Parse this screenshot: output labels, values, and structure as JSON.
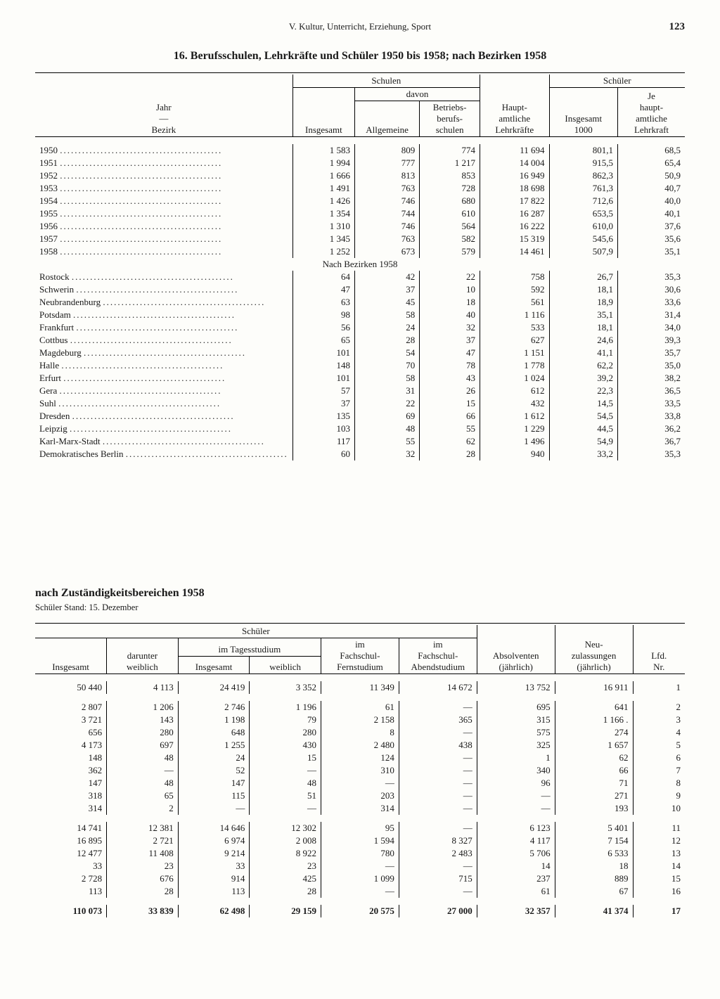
{
  "running_head": {
    "section": "V. Kultur, Unterricht, Erziehung, Sport",
    "page": "123"
  },
  "table1": {
    "title": "16. Berufsschulen, Lehrkräfte und Schüler 1950 bis 1958; nach Bezirken 1958",
    "header": {
      "stub1": "Jahr",
      "stub_dash": "—",
      "stub2": "Bezirk",
      "schulen": "Schulen",
      "davon": "davon",
      "insgesamt": "Insgesamt",
      "allgemeine": "Allgemeine",
      "betriebs": "Betriebs-\nberufs-\nschulen",
      "lehr": "Haupt-\namtliche\nLehrkräfte",
      "schueler": "Schüler",
      "sch_ins": "Insgesamt\n1000",
      "sch_je": "Je\nhaupt-\namtliche\nLehrkraft"
    },
    "years": [
      {
        "l": "1950",
        "c": [
          "1 583",
          "809",
          "774",
          "11 694",
          "801,1",
          "68,5"
        ]
      },
      {
        "l": "1951",
        "c": [
          "1 994",
          "777",
          "1 217",
          "14 004",
          "915,5",
          "65,4"
        ]
      },
      {
        "l": "1952",
        "c": [
          "1 666",
          "813",
          "853",
          "16 949",
          "862,3",
          "50,9"
        ]
      },
      {
        "l": "1953",
        "c": [
          "1 491",
          "763",
          "728",
          "18 698",
          "761,3",
          "40,7"
        ]
      },
      {
        "l": "1954",
        "c": [
          "1 426",
          "746",
          "680",
          "17 822",
          "712,6",
          "40,0"
        ]
      },
      {
        "l": "1955",
        "c": [
          "1 354",
          "744",
          "610",
          "16 287",
          "653,5",
          "40,1"
        ]
      },
      {
        "l": "1956",
        "c": [
          "1 310",
          "746",
          "564",
          "16 222",
          "610,0",
          "37,6"
        ]
      },
      {
        "l": "1957",
        "c": [
          "1 345",
          "763",
          "582",
          "15 319",
          "545,6",
          "35,6"
        ]
      },
      {
        "l": "1958",
        "c": [
          "1 252",
          "673",
          "579",
          "14 461",
          "507,9",
          "35,1"
        ]
      }
    ],
    "section_label": "Nach Bezirken 1958",
    "bezirke": [
      {
        "l": "Rostock",
        "c": [
          "64",
          "42",
          "22",
          "758",
          "26,7",
          "35,3"
        ]
      },
      {
        "l": "Schwerin",
        "c": [
          "47",
          "37",
          "10",
          "592",
          "18,1",
          "30,6"
        ]
      },
      {
        "l": "Neubrandenburg",
        "c": [
          "63",
          "45",
          "18",
          "561",
          "18,9",
          "33,6"
        ]
      },
      {
        "l": "Potsdam",
        "c": [
          "98",
          "58",
          "40",
          "1 116",
          "35,1",
          "31,4"
        ]
      },
      {
        "l": "Frankfurt",
        "c": [
          "56",
          "24",
          "32",
          "533",
          "18,1",
          "34,0"
        ]
      },
      {
        "l": "Cottbus",
        "c": [
          "65",
          "28",
          "37",
          "627",
          "24,6",
          "39,3"
        ]
      },
      {
        "l": "Magdeburg",
        "c": [
          "101",
          "54",
          "47",
          "1 151",
          "41,1",
          "35,7"
        ]
      },
      {
        "l": "Halle",
        "c": [
          "148",
          "70",
          "78",
          "1 778",
          "62,2",
          "35,0"
        ]
      },
      {
        "l": "Erfurt",
        "c": [
          "101",
          "58",
          "43",
          "1 024",
          "39,2",
          "38,2"
        ]
      },
      {
        "l": "Gera",
        "c": [
          "57",
          "31",
          "26",
          "612",
          "22,3",
          "36,5"
        ]
      },
      {
        "l": "Suhl",
        "c": [
          "37",
          "22",
          "15",
          "432",
          "14,5",
          "33,5"
        ]
      },
      {
        "l": "Dresden",
        "c": [
          "135",
          "69",
          "66",
          "1 612",
          "54,5",
          "33,8"
        ]
      },
      {
        "l": "Leipzig",
        "c": [
          "103",
          "48",
          "55",
          "1 229",
          "44,5",
          "36,2"
        ]
      },
      {
        "l": "Karl-Marx-Stadt",
        "c": [
          "117",
          "55",
          "62",
          "1 496",
          "54,9",
          "36,7"
        ]
      },
      {
        "l": "Demokratisches Berlin",
        "c": [
          "60",
          "32",
          "28",
          "940",
          "33,2",
          "35,3"
        ]
      }
    ]
  },
  "table2": {
    "title": "nach Zuständigkeitsbereichen 1958",
    "subnote": "Schüler Stand: 15. Dezember",
    "header": {
      "schueler": "Schüler",
      "darunter": "darunter\nweiblich",
      "tages": "im Tagesstudium",
      "ins": "Insgesamt",
      "weib": "weiblich",
      "fern": "im\nFachschul-\nFernstudium",
      "abend": "im\nFachschul-\nAbendstudium",
      "absolv": "Absolventen\n(jährlich)",
      "neu": "Neu-\nzulassungen\n(jährlich)",
      "lfd": "Lfd.\nNr."
    },
    "rows_a": [
      [
        "50 440",
        "4 113",
        "24 419",
        "3 352",
        "11 349",
        "14 672",
        "13 752",
        "16 911",
        "1"
      ]
    ],
    "rows_b": [
      [
        "2 807",
        "1 206",
        "2 746",
        "1 196",
        "61",
        "—",
        "695",
        "641",
        "2"
      ],
      [
        "3 721",
        "143",
        "1 198",
        "79",
        "2 158",
        "365",
        "315",
        "1 166 .",
        "3"
      ],
      [
        "656",
        "280",
        "648",
        "280",
        "8",
        "—",
        "575",
        "274",
        "4"
      ],
      [
        "4 173",
        "697",
        "1 255",
        "430",
        "2 480",
        "438",
        "325",
        "1 657",
        "5"
      ],
      [
        "148",
        "48",
        "24",
        "15",
        "124",
        "—",
        "1",
        "62",
        "6"
      ],
      [
        "362",
        "—",
        "52",
        "—",
        "310",
        "—",
        "340",
        "66",
        "7"
      ],
      [
        "147",
        "48",
        "147",
        "48",
        "—",
        "—",
        "96",
        "71",
        "8"
      ],
      [
        "318",
        "65",
        "115",
        "51",
        "203",
        "—",
        "—",
        "271",
        "9"
      ],
      [
        "314",
        "2",
        "—",
        "—",
        "314",
        "—",
        "—",
        "193",
        "10"
      ]
    ],
    "rows_c": [
      [
        "14 741",
        "12 381",
        "14 646",
        "12 302",
        "95",
        "—",
        "6 123",
        "5 401",
        "11"
      ],
      [
        "16 895",
        "2 721",
        "6 974",
        "2 008",
        "1 594",
        "8 327",
        "4 117",
        "7 154",
        "12"
      ],
      [
        "12 477",
        "11 408",
        "9 214",
        "8 922",
        "780",
        "2 483",
        "5 706",
        "6 533",
        "13"
      ],
      [
        "33",
        "23",
        "33",
        "23",
        "—",
        "—",
        "14",
        "18",
        "14"
      ],
      [
        "2 728",
        "676",
        "914",
        "425",
        "1 099",
        "715",
        "237",
        "889",
        "15"
      ],
      [
        "113",
        "28",
        "113",
        "28",
        "—",
        "—",
        "61",
        "67",
        "16"
      ]
    ],
    "total": [
      "110 073",
      "33 839",
      "62 498",
      "29 159",
      "20 575",
      "27 000",
      "32 357",
      "41 374",
      "17"
    ]
  }
}
